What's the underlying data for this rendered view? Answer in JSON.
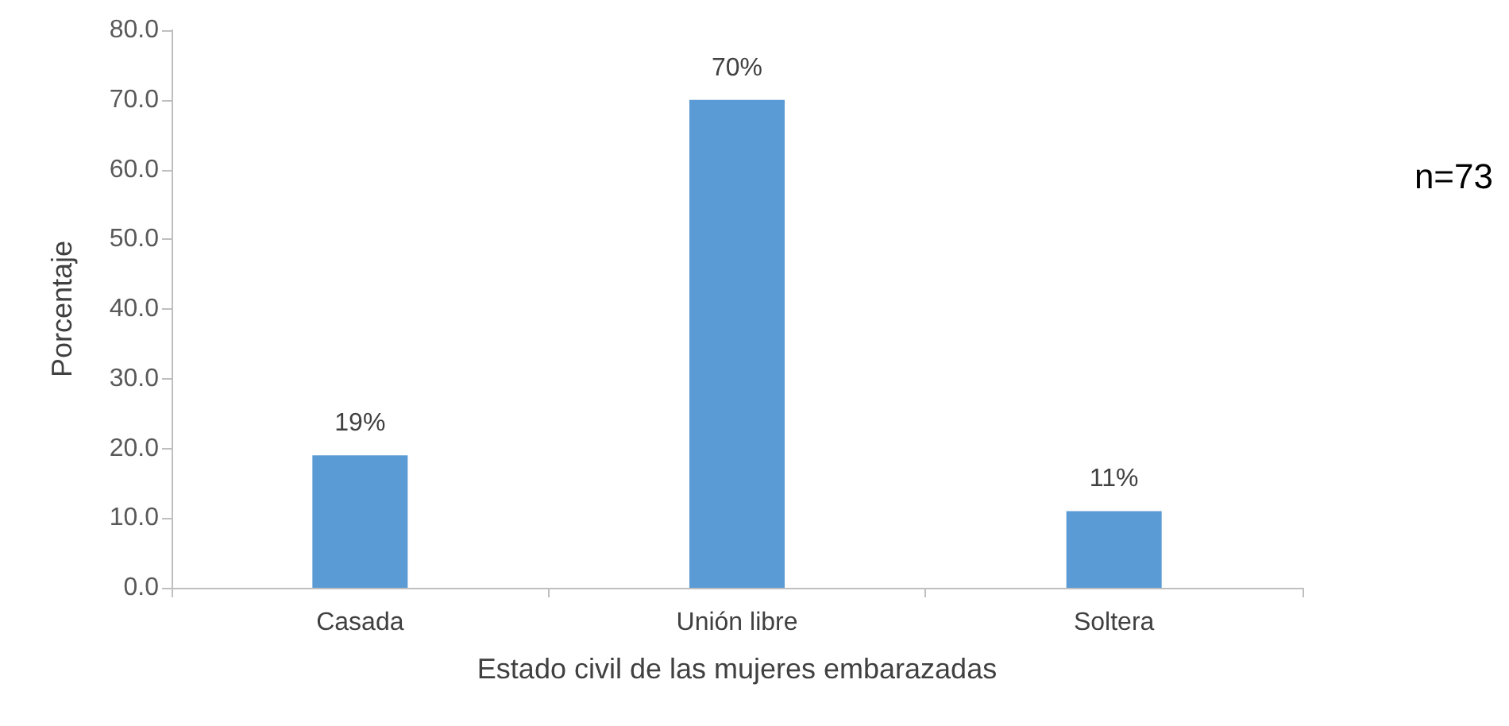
{
  "chart_data": {
    "type": "bar",
    "xlabel": "Estado civil de las mujeres embarazadas",
    "ylabel": "Porcentaje",
    "categories": [
      "Casada",
      "Unión libre",
      "Soltera"
    ],
    "values": [
      19,
      70,
      11
    ],
    "color": "#5b9bd5",
    "value_labels": [
      "19%",
      "70%",
      "11%"
    ],
    "ylim": [
      0,
      80
    ],
    "yticks": [
      {
        "value": 0,
        "label": "0.0"
      },
      {
        "value": 10,
        "label": "10.0"
      },
      {
        "value": 20,
        "label": "20.0"
      },
      {
        "value": 30,
        "label": "30.0"
      },
      {
        "value": 40,
        "label": "40.0"
      },
      {
        "value": 50,
        "label": "50.0"
      },
      {
        "value": 60,
        "label": "60.0"
      },
      {
        "value": 70,
        "label": "70.0"
      },
      {
        "value": 80,
        "label": "80.0"
      }
    ],
    "annotations": [
      "n=73"
    ]
  }
}
